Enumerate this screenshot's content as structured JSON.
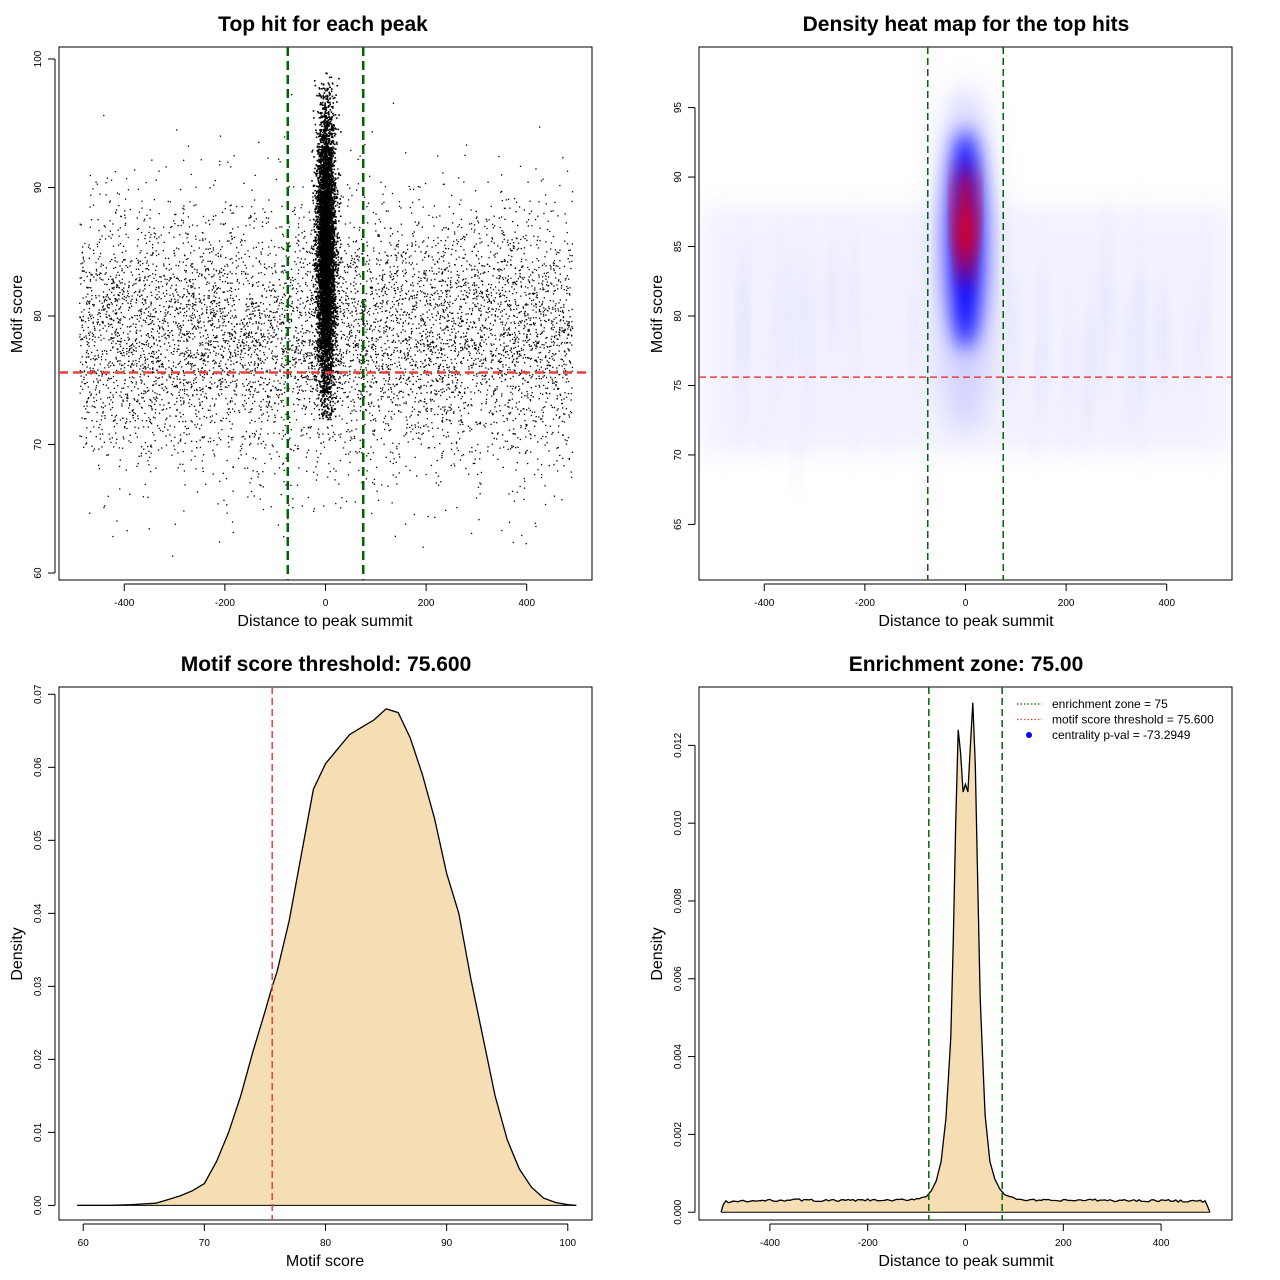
{
  "chart_data": [
    {
      "type": "scatter",
      "title": "Top hit for each peak",
      "xlabel": "Distance to peak summit",
      "ylabel": "Motif score",
      "xlim": [
        -490,
        490
      ],
      "ylim": [
        60,
        100
      ],
      "xticks": [
        -400,
        -200,
        0,
        200,
        400
      ],
      "yticks": [
        60,
        70,
        80,
        90,
        100
      ],
      "background_score": {
        "mean": 78.5,
        "sd": 5
      },
      "central_cluster": {
        "x_range": [
          -30,
          30
        ],
        "y_range": [
          72,
          99
        ]
      },
      "vlines": [
        -75,
        75
      ],
      "hline": 75.6,
      "colors": {
        "points": "#000000",
        "vlines": "#006400",
        "hline": "#e8413c"
      }
    },
    {
      "type": "heatmap",
      "title": "Density heat map for the top hits",
      "xlabel": "Distance to peak summit",
      "ylabel": "Motif score",
      "xlim": [
        -490,
        490
      ],
      "ylim": [
        61,
        99
      ],
      "xticks": [
        -400,
        -200,
        0,
        200,
        400
      ],
      "yticks": [
        65,
        70,
        75,
        80,
        85,
        90,
        95
      ],
      "hotspot": {
        "x": 0,
        "y": 86
      },
      "vlines": [
        -75,
        75
      ],
      "hline": 75.6,
      "colors": {
        "low": "#ffffff",
        "mid": "#0000ff",
        "high": "#ff0000",
        "vlines": "#006400",
        "hline": "#e8413c"
      }
    },
    {
      "type": "area",
      "title": "Motif score threshold: 75.600",
      "xlabel": "Motif score",
      "ylabel": "Density",
      "xlim": [
        58,
        102
      ],
      "ylim": [
        -0.002,
        0.071
      ],
      "xticks": [
        60,
        70,
        80,
        90,
        100
      ],
      "yticks": [
        "0.00",
        "0.01",
        "0.02",
        "0.03",
        "0.04",
        "0.05",
        "0.06",
        "0.07"
      ],
      "x": [
        59.5,
        62,
        64,
        65,
        66,
        67,
        68,
        69,
        70,
        71,
        72,
        73,
        74,
        75,
        75.6,
        76,
        77,
        78,
        79,
        80,
        81,
        82,
        83,
        84,
        85,
        86,
        87,
        88,
        89,
        90,
        91,
        92,
        93,
        94,
        95,
        96,
        97,
        98,
        99,
        100,
        100.7
      ],
      "values": [
        0,
        0,
        0.0001,
        0.0002,
        0.0003,
        0.0008,
        0.0013,
        0.002,
        0.003,
        0.006,
        0.01,
        0.015,
        0.021,
        0.0265,
        0.03,
        0.032,
        0.039,
        0.048,
        0.057,
        0.0605,
        0.0625,
        0.0645,
        0.0655,
        0.0665,
        0.068,
        0.0675,
        0.064,
        0.059,
        0.053,
        0.0455,
        0.04,
        0.031,
        0.023,
        0.015,
        0.009,
        0.005,
        0.0025,
        0.001,
        0.0004,
        0.0001,
        0
      ],
      "threshold": 75.6,
      "colors": {
        "fill": "#f5deb3",
        "line": "#000000",
        "threshold": "#e8413c"
      }
    },
    {
      "type": "area",
      "title": "Enrichment zone: 75.00",
      "xlabel": "Distance to peak summit",
      "ylabel": "Density",
      "xlim": [
        -545,
        545
      ],
      "ylim": [
        -0.0002,
        0.0135
      ],
      "xticks": [
        -400,
        -200,
        0,
        200,
        400
      ],
      "yticks": [
        "0.000",
        "0.002",
        "0.004",
        "0.006",
        "0.008",
        "0.010",
        "0.012"
      ],
      "x": [
        -500,
        -495,
        -490,
        -450,
        -400,
        -350,
        -300,
        -250,
        -200,
        -150,
        -120,
        -100,
        -80,
        -70,
        -60,
        -50,
        -40,
        -30,
        -25,
        -20,
        -15,
        -10,
        -5,
        0,
        5,
        10,
        15,
        20,
        25,
        30,
        40,
        50,
        60,
        70,
        80,
        100,
        120,
        150,
        200,
        250,
        300,
        350,
        400,
        450,
        490,
        495,
        500
      ],
      "values": [
        0,
        0.0002,
        0.00027,
        0.00028,
        0.0003,
        0.00032,
        0.0003,
        0.0003,
        0.00031,
        0.0003,
        0.00032,
        0.00035,
        0.0004,
        0.00055,
        0.0008,
        0.0013,
        0.0024,
        0.0045,
        0.007,
        0.01,
        0.0124,
        0.0118,
        0.0108,
        0.011,
        0.0108,
        0.012,
        0.0131,
        0.0115,
        0.0085,
        0.0055,
        0.0025,
        0.0013,
        0.00085,
        0.0006,
        0.00045,
        0.00036,
        0.00032,
        0.0003,
        0.0003,
        0.00031,
        0.0003,
        0.0003,
        0.0003,
        0.00029,
        0.00028,
        0.00015,
        0
      ],
      "vlines": [
        -75,
        75
      ],
      "legend": [
        {
          "label": "enrichment zone = 75",
          "color": "#006400",
          "style": "dotted"
        },
        {
          "label": "motif score threshold = 75.600",
          "color": "#e8413c",
          "style": "dotted"
        },
        {
          "label": "centrality p-val = -73.2949",
          "color": "#0000ff",
          "style": "point"
        }
      ],
      "legend_position": "top-right",
      "colors": {
        "fill": "#f5deb3",
        "line": "#000000",
        "vlines": "#006400"
      }
    }
  ]
}
